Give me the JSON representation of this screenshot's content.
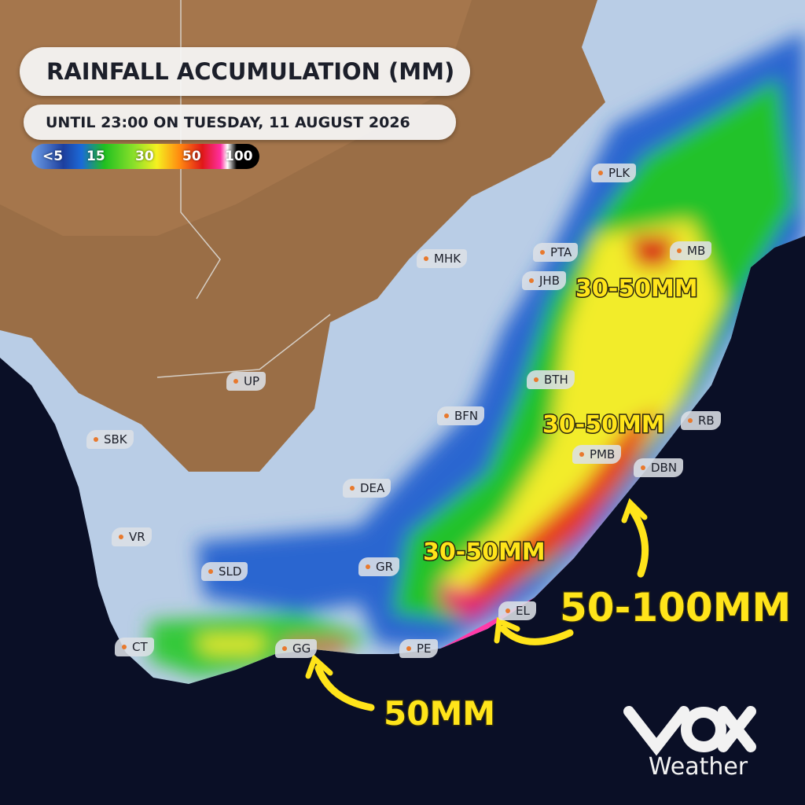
{
  "header": {
    "title": "RAINFALL ACCUMULATION (MM)",
    "subtitle": "UNTIL 23:00 ON TUESDAY, 11 AUGUST 2026"
  },
  "legend": {
    "labels": [
      "<5",
      "15",
      "30",
      "50",
      "100"
    ]
  },
  "places": [
    {
      "label": "PLK"
    },
    {
      "label": "PTA"
    },
    {
      "label": "MHK"
    },
    {
      "label": "JHB"
    },
    {
      "label": "MB"
    },
    {
      "label": "BTH"
    },
    {
      "label": "UP"
    },
    {
      "label": "BFN"
    },
    {
      "label": "RB"
    },
    {
      "label": "SBK"
    },
    {
      "label": "PMB"
    },
    {
      "label": "DBN"
    },
    {
      "label": "DEA"
    },
    {
      "label": "VR"
    },
    {
      "label": "GR"
    },
    {
      "label": "SLD"
    },
    {
      "label": "EL"
    },
    {
      "label": "CT"
    },
    {
      "label": "GG"
    },
    {
      "label": "PE"
    }
  ],
  "annotations": [
    "30-50MM",
    "30-50MM",
    "30-50MM",
    "50-100MM",
    "50MM"
  ],
  "brand": {
    "name": "Weather"
  }
}
